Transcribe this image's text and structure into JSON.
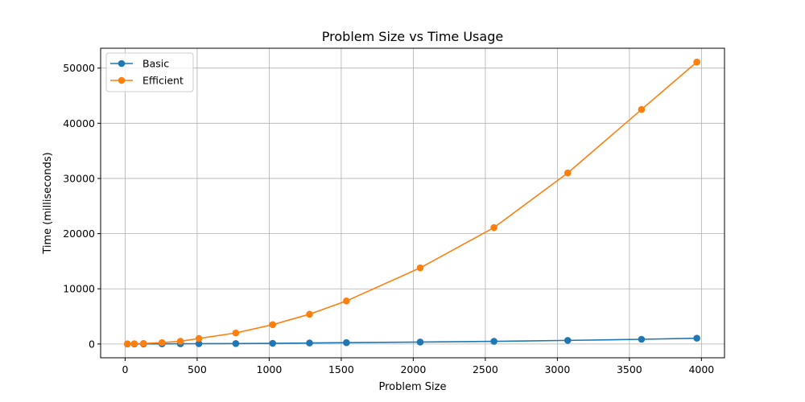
{
  "chart_data": {
    "type": "line",
    "title": "Problem Size vs Time Usage",
    "xlabel": "Problem Size",
    "ylabel": "Time (milliseconds)",
    "xlim": [
      -170,
      4160
    ],
    "ylim": [
      -2500,
      53600
    ],
    "xticks": [
      0,
      500,
      1000,
      1500,
      2000,
      2500,
      3000,
      3500,
      4000
    ],
    "yticks": [
      0,
      10000,
      20000,
      30000,
      40000,
      50000
    ],
    "grid": true,
    "legend_position": "top-left",
    "x": [
      16,
      64,
      128,
      256,
      384,
      512,
      768,
      1024,
      1280,
      1536,
      2048,
      2560,
      3072,
      3584,
      3968
    ],
    "series": [
      {
        "name": "Basic",
        "color": "#1f77b4",
        "values": [
          2,
          5,
          10,
          20,
          35,
          50,
          80,
          120,
          180,
          240,
          350,
          480,
          650,
          850,
          1050
        ]
      },
      {
        "name": "Efficient",
        "color": "#ff7f0e",
        "values": [
          20,
          50,
          100,
          250,
          500,
          1000,
          2000,
          3500,
          5400,
          7800,
          13800,
          21100,
          31000,
          42500,
          51100
        ]
      }
    ]
  }
}
